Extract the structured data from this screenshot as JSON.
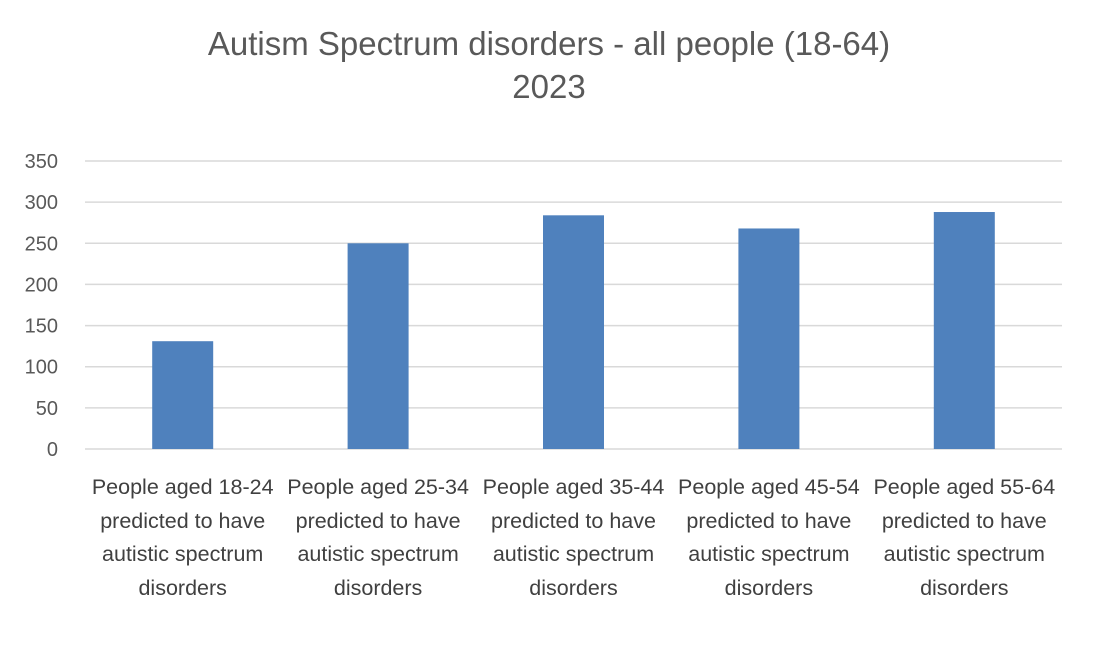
{
  "chart_data": {
    "type": "bar",
    "title_lines": [
      "Autism Spectrum disorders - all people (18-64)",
      "2023"
    ],
    "categories": [
      "People aged 18-24 predicted to have autistic spectrum disorders",
      "People aged 25-34 predicted to have autistic spectrum disorders",
      "People aged 35-44 predicted to have autistic spectrum disorders",
      "People aged 45-54 predicted to have autistic spectrum disorders",
      "People aged 55-64 predicted to have autistic spectrum disorders"
    ],
    "values": [
      131,
      250,
      284,
      268,
      288
    ],
    "xlabel": "",
    "ylabel": "",
    "ylim": [
      0,
      350
    ],
    "yticks": [
      "0",
      "50",
      "100",
      "150",
      "200",
      "250",
      "300",
      "350"
    ],
    "grid": true,
    "legend": "none",
    "bar_color": "#4f81bd",
    "grid_color": "#d9d9d9"
  }
}
